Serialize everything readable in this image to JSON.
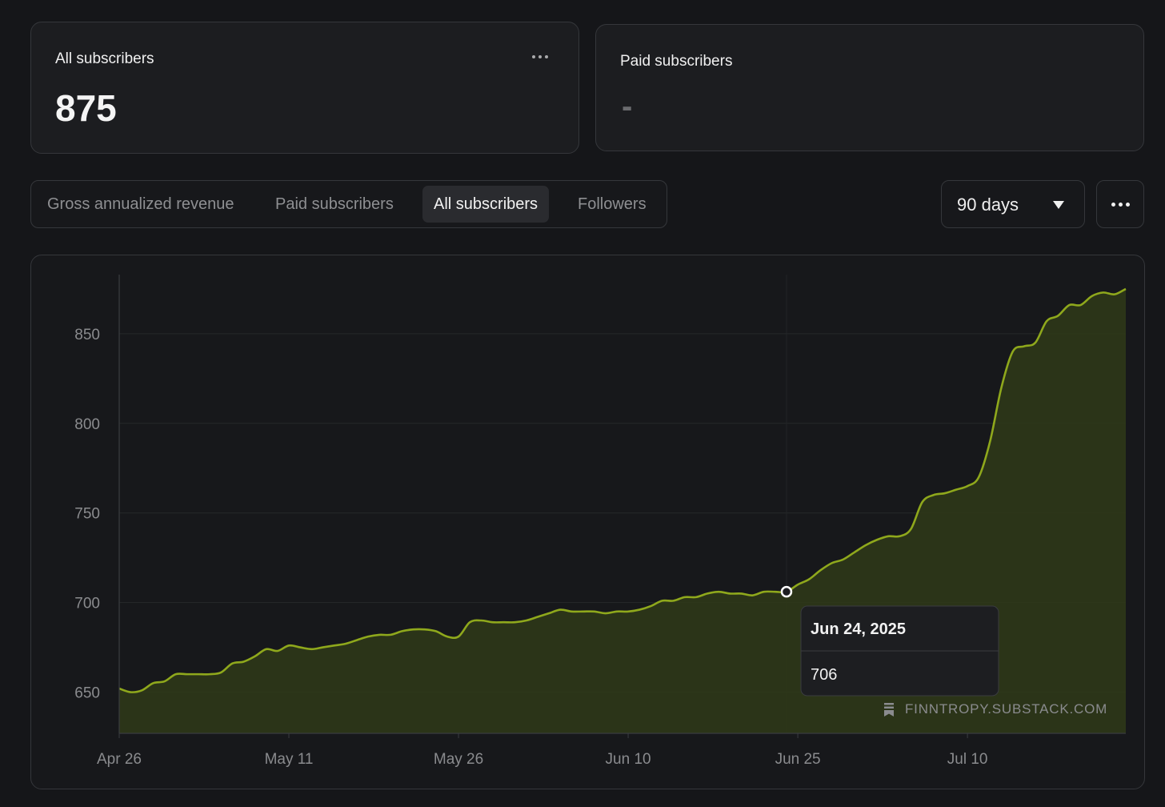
{
  "cards": {
    "all_subscribers": {
      "title": "All subscribers",
      "value": "875",
      "menu_icon": "ellipsis-icon"
    },
    "paid_subscribers": {
      "title": "Paid subscribers",
      "value": "-"
    }
  },
  "tabs": [
    {
      "label": "Gross annualized revenue",
      "active": false
    },
    {
      "label": "Paid subscribers",
      "active": false
    },
    {
      "label": "All subscribers",
      "active": true
    },
    {
      "label": "Followers",
      "active": false
    }
  ],
  "period": {
    "label": "90 days",
    "icon": "caret-down-icon"
  },
  "more_icon": "ellipsis-icon",
  "tooltip": {
    "date": "Jun 24, 2025",
    "value": "706"
  },
  "watermark": {
    "text": "FINNTROPY.SUBSTACK.COM",
    "icon": "substack-icon"
  },
  "colors": {
    "line": "#8fa81c",
    "fill": "#2f3a17",
    "background": "#151619",
    "card": "#1c1d20"
  },
  "chart_data": {
    "type": "area",
    "x_start": "Apr 26",
    "x_end": "Jul 24",
    "x_ticks": [
      "Apr 26",
      "May 11",
      "May 26",
      "Jun 10",
      "Jun 25",
      "Jul 10"
    ],
    "y_ticks": [
      650,
      700,
      750,
      800,
      850
    ],
    "ylim": [
      627,
      883
    ],
    "grid": true,
    "series": [
      {
        "values": [
          652,
          650,
          651,
          655,
          656,
          660,
          660,
          660,
          660,
          661,
          666,
          667,
          670,
          674,
          673,
          676,
          675,
          674,
          675,
          676,
          677,
          679,
          681,
          682,
          682,
          684,
          685,
          685,
          684,
          681,
          681,
          689,
          690,
          689,
          689,
          689,
          690,
          692,
          694,
          696,
          695,
          695,
          695,
          694,
          695,
          695,
          696,
          698,
          701,
          701,
          703,
          703,
          705,
          706,
          705,
          705,
          704,
          706,
          706,
          706,
          710,
          713,
          718,
          722,
          724,
          728,
          732,
          735,
          737,
          737,
          741,
          756,
          760,
          761,
          763,
          765,
          770,
          790,
          820,
          840,
          843,
          845,
          857,
          860,
          866,
          866,
          871,
          873,
          872,
          875
        ]
      }
    ],
    "highlight": {
      "index": 59,
      "label": "Jun 24, 2025",
      "value": 706
    }
  }
}
